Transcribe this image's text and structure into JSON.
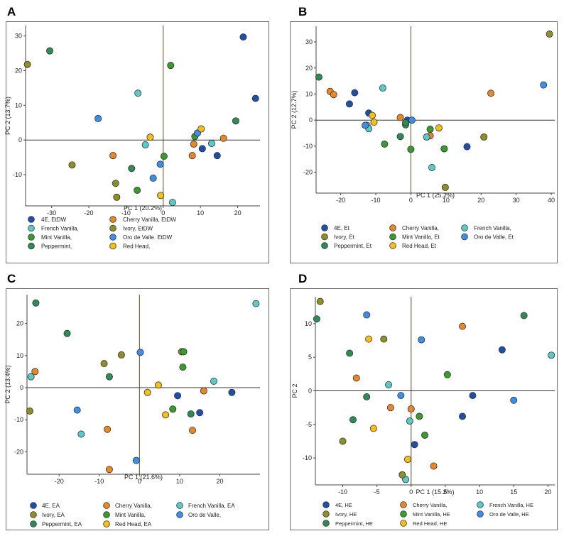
{
  "colors": {
    "4E": "#1f4fa8",
    "Cherry Vanilla": "#e8872a",
    "French Vanilla": "#5cc9c9",
    "Ivory": "#8f8f2a",
    "Mint Vanilla": "#3a9a2e",
    "Oro de Valle": "#3f8ee6",
    "Peppermint": "#2f8a55",
    "Red Head": "#f5bf1a"
  },
  "chart_data": [
    {
      "type": "scatter",
      "panel_letter": "A",
      "xlabel": "PC 1 (20.2%)",
      "ylabel": "PC 2 (13.7%)",
      "xlim": [
        -37,
        26
      ],
      "ylim": [
        -19,
        33
      ],
      "xticks": [
        -30,
        -20,
        -10,
        0,
        10,
        20
      ],
      "yticks": [
        -10,
        0,
        10,
        20,
        30
      ],
      "legend": [
        {
          "label": "4E, EtDW",
          "series": "4E"
        },
        {
          "label": "Cherry Vanilla, EtDW",
          "series": "Cherry Vanilla"
        },
        {
          "label": "French Vanilla,",
          "series": "French Vanilla"
        },
        {
          "label": "Ivory, EtDW",
          "series": "Ivory"
        },
        {
          "label": "Mint Vanilla,",
          "series": "Mint Vanilla"
        },
        {
          "label": "Oro de Valle. EtDW",
          "series": "Oro de Valle"
        },
        {
          "label": "Peppermint,",
          "series": "Peppermint"
        },
        {
          "label": "Red Head,",
          "series": "Red Head"
        }
      ],
      "series": [
        {
          "name": "4E",
          "points": [
            [
              21.5,
              29.7
            ],
            [
              24.8,
              12
            ],
            [
              10.5,
              -2.5
            ],
            [
              14.5,
              -4.5
            ]
          ]
        },
        {
          "name": "Cherry Vanilla",
          "points": [
            [
              -13.5,
              -4.5
            ],
            [
              8.2,
              -1.2
            ],
            [
              7.8,
              -4.5
            ],
            [
              16.2,
              0.5
            ]
          ]
        },
        {
          "name": "French Vanilla",
          "points": [
            [
              -6.8,
              13.5
            ],
            [
              -4.8,
              -1.4
            ],
            [
              13,
              -1
            ],
            [
              2.5,
              -18
            ]
          ]
        },
        {
          "name": "Ivory",
          "points": [
            [
              -36.5,
              21.8
            ],
            [
              -24.5,
              -7.2
            ],
            [
              -12.8,
              -12.5
            ],
            [
              -12.5,
              -16.5
            ]
          ]
        },
        {
          "name": "Mint Vanilla",
          "points": [
            [
              2,
              21.5
            ],
            [
              8.5,
              1
            ],
            [
              0.2,
              -4.7
            ],
            [
              -7,
              -14.5
            ]
          ]
        },
        {
          "name": "Oro de Valle",
          "points": [
            [
              -17.5,
              6.2
            ],
            [
              9.2,
              2
            ],
            [
              -0.8,
              -7
            ],
            [
              -2.7,
              -11
            ]
          ]
        },
        {
          "name": "Peppermint",
          "points": [
            [
              -30.5,
              25.7
            ],
            [
              19.5,
              5.5
            ],
            [
              -8.5,
              -8.2
            ]
          ]
        },
        {
          "name": "Red Head",
          "points": [
            [
              -3.5,
              0.8
            ],
            [
              10.2,
              3.2
            ],
            [
              -0.7,
              -16
            ]
          ]
        }
      ]
    },
    {
      "type": "scatter",
      "panel_letter": "B",
      "xlabel": "PC 1 (25.2%)",
      "ylabel": "PC 2 (12.7%)",
      "xlim": [
        -27,
        41
      ],
      "ylim": [
        -28,
        36
      ],
      "xticks": [
        -20,
        -10,
        0,
        10,
        20,
        30,
        40
      ],
      "yticks": [
        -20,
        -10,
        0,
        10,
        20,
        30
      ],
      "legend": [
        {
          "label": "4E, Et",
          "series": "4E"
        },
        {
          "label": "Cherry Vanilla,",
          "series": "Cherry Vanilla"
        },
        {
          "label": "French Vanilla,",
          "series": "French Vanilla"
        },
        {
          "label": "Ivory, Et",
          "series": "Ivory"
        },
        {
          "label": "Mint Vanilla, Et",
          "series": "Mint Vanilla"
        },
        {
          "label": "Oro de Valle, Et",
          "series": "Oro de Valle"
        },
        {
          "label": "Peppermint, Et",
          "series": "Peppermint"
        },
        {
          "label": "Red Head, Et",
          "series": "Red Head"
        }
      ],
      "series": [
        {
          "name": "4E",
          "points": [
            [
              -16,
              10.5
            ],
            [
              -17.5,
              6.2
            ],
            [
              -12,
              2.7
            ],
            [
              -1,
              0
            ],
            [
              16,
              -10.2
            ]
          ]
        },
        {
          "name": "Cherry Vanilla",
          "points": [
            [
              -23,
              11
            ],
            [
              -22,
              9.8
            ],
            [
              -3,
              1
            ],
            [
              5.5,
              -6
            ],
            [
              22.8,
              10.3
            ]
          ]
        },
        {
          "name": "French Vanilla",
          "points": [
            [
              -8,
              12.3
            ],
            [
              -12.5,
              -2
            ],
            [
              -12,
              -3.3
            ],
            [
              4.5,
              -6.5
            ],
            [
              6,
              -18.2
            ]
          ]
        },
        {
          "name": "Ivory",
          "points": [
            [
              39.5,
              33
            ],
            [
              9.8,
              -25.8
            ],
            [
              20.8,
              -6.5
            ]
          ]
        },
        {
          "name": "Mint Vanilla",
          "points": [
            [
              -1.5,
              -1.8
            ],
            [
              0,
              -11.2
            ],
            [
              -7.5,
              -9.2
            ],
            [
              9.5,
              -11
            ],
            [
              5.5,
              -3.5
            ]
          ]
        },
        {
          "name": "Oro de Valle",
          "points": [
            [
              37.8,
              13.5
            ],
            [
              0.3,
              0
            ],
            [
              -13,
              -2
            ]
          ]
        },
        {
          "name": "Peppermint",
          "points": [
            [
              -26.2,
              16.5
            ],
            [
              -3,
              -6.3
            ],
            [
              -1.5,
              -1
            ]
          ]
        },
        {
          "name": "Red Head",
          "points": [
            [
              -11,
              1.8
            ],
            [
              -10.5,
              -0.8
            ],
            [
              8,
              -3
            ]
          ]
        }
      ]
    },
    {
      "type": "scatter",
      "panel_letter": "C",
      "xlabel": "PC 1 (21.6%)",
      "ylabel": "PC 2 (13.4%)",
      "xlim": [
        -28,
        30
      ],
      "ylim": [
        -27,
        29
      ],
      "xticks": [
        -20,
        -10,
        0,
        10,
        20
      ],
      "yticks": [
        -20,
        -10,
        0,
        10,
        20
      ],
      "legend": [
        {
          "label": "4E, EA",
          "series": "4E"
        },
        {
          "label": "Cherry Vanilla,",
          "series": "Cherry Vanilla"
        },
        {
          "label": "French Vanilla, EA",
          "series": "French Vanilla"
        },
        {
          "label": "Ivory, EA",
          "series": "Ivory"
        },
        {
          "label": "Mint Vanilla,",
          "series": "Mint Vanilla"
        },
        {
          "label": "Oro de Valle,",
          "series": "Oro de Valle"
        },
        {
          "label": "Peppermint, EA",
          "series": "Peppermint"
        },
        {
          "label": "Red Head, EA",
          "series": "Red Head"
        }
      ],
      "series": [
        {
          "name": "4E",
          "points": [
            [
              9.5,
              -2.5
            ],
            [
              15,
              -7.8
            ],
            [
              23,
              -1.5
            ]
          ]
        },
        {
          "name": "Cherry Vanilla",
          "points": [
            [
              -26,
              5
            ],
            [
              -8,
              -13
            ],
            [
              -7.5,
              -25.5
            ],
            [
              13.2,
              -13.3
            ],
            [
              16,
              -1
            ]
          ]
        },
        {
          "name": "French Vanilla",
          "points": [
            [
              29,
              26.2
            ],
            [
              -27,
              3.4
            ],
            [
              -14.5,
              -14.5
            ],
            [
              18.5,
              2
            ]
          ]
        },
        {
          "name": "Ivory",
          "points": [
            [
              -27.3,
              -7.3
            ],
            [
              -8.8,
              7.5
            ],
            [
              -4.5,
              10.2
            ],
            [
              10.5,
              11.2
            ]
          ]
        },
        {
          "name": "Mint Vanilla",
          "points": [
            [
              11,
              11.2
            ],
            [
              10.8,
              6.4
            ],
            [
              8.3,
              -6.7
            ]
          ]
        },
        {
          "name": "Oro de Valle",
          "points": [
            [
              0.2,
              11
            ],
            [
              -15.5,
              -7
            ],
            [
              -0.8,
              -22.7
            ]
          ]
        },
        {
          "name": "Peppermint",
          "points": [
            [
              -25.8,
              26.4
            ],
            [
              -18,
              16.9
            ],
            [
              -7.5,
              3.4
            ],
            [
              12.8,
              -8.2
            ]
          ]
        },
        {
          "name": "Red Head",
          "points": [
            [
              2,
              -1.5
            ],
            [
              4.7,
              0.8
            ],
            [
              6.5,
              -8.5
            ]
          ]
        }
      ]
    },
    {
      "type": "scatter",
      "panel_letter": "D",
      "xlabel": "PC 1 (15.2%)",
      "ylabel": "PC 2",
      "xlim": [
        -14,
        21
      ],
      "ylim": [
        -14,
        14
      ],
      "xticks": [
        -10,
        -5,
        0,
        5,
        10,
        15,
        20
      ],
      "yticks": [
        -10,
        -5,
        0,
        5,
        10
      ],
      "legend": [
        {
          "label": "4E, HE",
          "series": "4E"
        },
        {
          "label": "Cherry Vanilla,",
          "series": "Cherry Vanilla"
        },
        {
          "label": "French Vanilla, HE",
          "series": "French Vanilla"
        },
        {
          "label": "Ivory, HE",
          "series": "Ivory"
        },
        {
          "label": "Mint Vanilla, HE",
          "series": "Mint Vanilla"
        },
        {
          "label": "Oro de Valle, HE",
          "series": "Oro de Valle"
        },
        {
          "label": "Peppermint, HE",
          "series": "Peppermint"
        },
        {
          "label": "Red Head, HE",
          "series": "Red Head"
        }
      ],
      "series": [
        {
          "name": "4E",
          "points": [
            [
              13.3,
              6.1
            ],
            [
              9,
              -0.7
            ],
            [
              7.5,
              -3.8
            ],
            [
              0.5,
              -8
            ]
          ]
        },
        {
          "name": "Cherry Vanilla",
          "points": [
            [
              7.5,
              9.6
            ],
            [
              -8,
              1.9
            ],
            [
              -3,
              -2.5
            ],
            [
              0,
              -2.7
            ],
            [
              3.3,
              -11.2
            ]
          ]
        },
        {
          "name": "French Vanilla",
          "points": [
            [
              20.5,
              5.3
            ],
            [
              -3.3,
              0.9
            ],
            [
              -0.2,
              -4.5
            ],
            [
              -0.8,
              -13.2
            ]
          ]
        },
        {
          "name": "Ivory",
          "points": [
            [
              -13.3,
              13.3
            ],
            [
              -4,
              7.7
            ],
            [
              -10,
              -7.5
            ],
            [
              -1.3,
              -12.5
            ]
          ]
        },
        {
          "name": "Mint Vanilla",
          "points": [
            [
              5.3,
              2.4
            ],
            [
              1.2,
              -3.8
            ],
            [
              2,
              -6.6
            ]
          ]
        },
        {
          "name": "Oro de Valle",
          "points": [
            [
              -6.5,
              11.3
            ],
            [
              1.5,
              7.6
            ],
            [
              -1.5,
              -0.7
            ],
            [
              15,
              -1.4
            ]
          ]
        },
        {
          "name": "Peppermint",
          "points": [
            [
              -13.8,
              10.7
            ],
            [
              -9,
              5.6
            ],
            [
              -6.5,
              -0.9
            ],
            [
              16.5,
              11.2
            ],
            [
              -8.5,
              -4.3
            ]
          ]
        },
        {
          "name": "Red Head",
          "points": [
            [
              -6.2,
              7.7
            ],
            [
              -5.5,
              -5.6
            ],
            [
              -0.5,
              -10.2
            ]
          ]
        }
      ]
    }
  ]
}
